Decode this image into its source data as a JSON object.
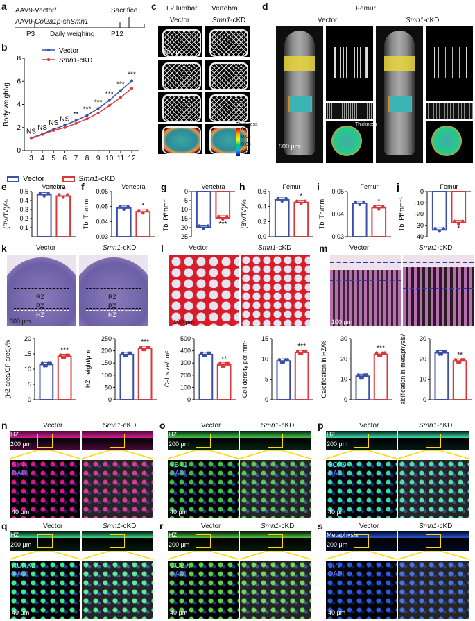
{
  "colors": {
    "vector": "#3b4fa8",
    "kd": "#d9383a"
  },
  "panel_a": {
    "label": "a",
    "line1": "AAV9-Vector/",
    "line2_prefix": "AAV9-",
    "line2_italic": "Col2a1p",
    "line2_mid": "-sh",
    "line2_italic2": "Smn1",
    "sacrifice": "Sacrifice",
    "p3": "P3",
    "daily": "Daily weighing",
    "p12": "P12"
  },
  "panel_c": {
    "label": "c",
    "col1": "L2 lumbar",
    "col2": "Vertebra",
    "vector": "Vector",
    "kd_italic": "Smn1",
    "kd_suffix": "-cKD",
    "scale": "500 μm",
    "thickness_title": "Thickness",
    "thickness_ticks": [
      "0.07",
      "0.05",
      "0.03",
      "0.01"
    ]
  },
  "panel_d": {
    "label": "d",
    "title": "Femur",
    "vector": "Vector",
    "kd_italic": "Smn1",
    "kd_suffix": "-cKD",
    "scale": "500 μm",
    "thickness_title": "Thickness",
    "thickness_ticks": [
      "0.04",
      "0.03",
      "0.02",
      "0.01"
    ]
  },
  "legend": {
    "vector": "Vector",
    "kd_italic": "Smn1",
    "kd_suffix": "-cKD"
  },
  "panel_k": {
    "label": "k",
    "vector": "Vector",
    "kd_italic": "Smn1",
    "kd_suffix": "-cKD",
    "rz": "RZ",
    "pz": "PZ",
    "hz": "HZ",
    "scale": "500 μm"
  },
  "panel_l": {
    "label": "l",
    "vector": "Vector",
    "kd_italic": "Smn1",
    "kd_suffix": "-cKD",
    "scale": "100 μm"
  },
  "panel_m": {
    "label": "m",
    "vector": "Vector",
    "kd_italic": "Smn1",
    "kd_suffix": "-cKD",
    "scale": "100 μm"
  },
  "if_panels": [
    {
      "label": "n",
      "marker": "SMN",
      "dapi": "DAPI",
      "zone": "HZ",
      "scale_top": "200 μm",
      "scale_bot": "40 μm",
      "vector": "Vector",
      "kd_italic": "Smn1",
      "kd_suffix": "-cKD"
    },
    {
      "label": "o",
      "marker": "YBX1",
      "dapi": "DAPI",
      "zone": "HZ",
      "scale_top": "200 μm",
      "scale_bot": "40 μm",
      "vector": "Vector",
      "kd_italic": "Smn1",
      "kd_suffix": "-cKD"
    },
    {
      "label": "p",
      "marker": "SOX9",
      "dapi": "DAPI",
      "zone": "HZ",
      "scale_top": "200 μm",
      "scale_bot": "40 μm",
      "vector": "Vector",
      "kd_italic": "Smn1",
      "kd_suffix": "-cKD"
    },
    {
      "label": "q",
      "marker": "RUNX2",
      "dapi": "DAPI",
      "zone": "HZ",
      "scale_top": "200 μm",
      "scale_bot": "40 μm",
      "vector": "Vector",
      "kd_italic": "Smn1",
      "kd_suffix": "-cKD"
    },
    {
      "label": "r",
      "marker": "COL X",
      "dapi": "DAPI",
      "zone": "HZ",
      "scale_top": "200 μm",
      "scale_bot": "40 μm",
      "vector": "Vector",
      "kd_italic": "Smn1",
      "kd_suffix": "-cKD"
    },
    {
      "label": "s",
      "marker": "SP7",
      "dapi": "DAPI",
      "zone": "Metaphysis",
      "scale_top": "200 μm",
      "scale_bot": "40 μm",
      "vector": "Vector",
      "kd_italic": "Smn1",
      "kd_suffix": "-cKD"
    }
  ],
  "chart_data": [
    {
      "id": "b",
      "type": "line",
      "label": "b",
      "ylabel": "Body weight/g",
      "x": [
        3,
        4,
        5,
        6,
        7,
        8,
        9,
        10,
        11,
        12
      ],
      "ylim": [
        0,
        8
      ],
      "yticks": [
        0,
        2,
        4,
        6,
        8
      ],
      "legend_vector": "Vector",
      "legend_kd_italic": "Smn1",
      "legend_kd_suffix": "-cKD",
      "series": [
        {
          "name": "Vector",
          "values": [
            1.1,
            1.45,
            1.85,
            2.2,
            2.6,
            3.05,
            3.65,
            4.35,
            5.2,
            6.05
          ]
        },
        {
          "name": "Smn1-cKD",
          "values": [
            1.05,
            1.4,
            1.75,
            2.0,
            2.35,
            2.75,
            3.25,
            3.9,
            4.6,
            5.4
          ]
        }
      ],
      "annotations": [
        "NS",
        "NS",
        "NS",
        "NS",
        "**",
        "***",
        "***",
        "***",
        "***",
        "***"
      ]
    },
    {
      "id": "e",
      "type": "bar",
      "label": "e",
      "title": "Vertebra",
      "ylabel": "(BV/TV)/%",
      "ylim": [
        0,
        0.5
      ],
      "yticks": [
        "0.1",
        "0.2",
        "0.3",
        "0.4",
        "0.5"
      ],
      "values": [
        0.465,
        0.45
      ],
      "sig": "*"
    },
    {
      "id": "f",
      "type": "bar",
      "label": "f",
      "title": "Vertebra",
      "ylabel": "Tb. Th/mm",
      "ylim": [
        0.03,
        0.06
      ],
      "yticks": [
        "0.03",
        "0.04",
        "0.05",
        "0.06"
      ],
      "values": [
        0.049,
        0.0465
      ],
      "sig": "*"
    },
    {
      "id": "g",
      "type": "bar",
      "label": "g",
      "title": "Vertebra",
      "ylabel": "Tb. Pf/mm⁻¹",
      "ylim": [
        -25,
        0
      ],
      "yticks": [
        "0",
        "-5",
        "-10",
        "-15",
        "-20",
        "-25"
      ],
      "values": [
        -19.8,
        -14.6
      ],
      "sig": "***"
    },
    {
      "id": "h",
      "type": "bar",
      "label": "h",
      "title": "Femur",
      "ylabel": "(BV/TV)/%",
      "ylim": [
        0,
        0.6
      ],
      "yticks": [
        "0.0",
        "0.2",
        "0.4",
        "0.6"
      ],
      "values": [
        0.49,
        0.455
      ],
      "sig": "*"
    },
    {
      "id": "i",
      "type": "bar",
      "label": "i",
      "title": "Femur",
      "ylabel": "Tb. Th/mm",
      "ylim": [
        0.03,
        0.05
      ],
      "yticks": [
        "0.03",
        "0.04",
        "0.05"
      ],
      "values": [
        0.0448,
        0.0428
      ],
      "sig": "*"
    },
    {
      "id": "j",
      "type": "bar",
      "label": "j",
      "title": "Femur",
      "ylabel": "Tb. Pf/mm⁻¹",
      "ylim": [
        -40,
        0
      ],
      "yticks": [
        "0",
        "-10",
        "-20",
        "-30",
        "-40"
      ],
      "values": [
        -34,
        -27.5
      ],
      "sig": "*"
    },
    {
      "id": "k1",
      "type": "bar",
      "ylabel": "(HZ area/GP area)/%",
      "ylim": [
        0,
        20
      ],
      "yticks": [
        "0",
        "5",
        "10",
        "15",
        "20"
      ],
      "values": [
        11.5,
        14.2
      ],
      "sig": "***"
    },
    {
      "id": "k2",
      "type": "bar",
      "ylabel": "HZ height/μm",
      "ylim": [
        0,
        250
      ],
      "yticks": [
        "0",
        "50",
        "100",
        "150",
        "200",
        "250"
      ],
      "values": [
        185,
        210
      ],
      "sig": "***"
    },
    {
      "id": "l1",
      "type": "bar",
      "ylabel": "Cell size/μm²",
      "ylim": [
        0,
        500
      ],
      "yticks": [
        "0",
        "100",
        "200",
        "300",
        "400",
        "500"
      ],
      "values": [
        370,
        285
      ],
      "sig": "**"
    },
    {
      "id": "l2",
      "type": "bar",
      "ylabel": "Cell density per mm²",
      "ylim": [
        0,
        15
      ],
      "yticks": [
        "0",
        "5",
        "10",
        "15"
      ],
      "values": [
        9.5,
        11.6
      ],
      "sig": "***"
    },
    {
      "id": "m1",
      "type": "bar",
      "ylabel": "Calcification in HZ/%",
      "ylim": [
        0,
        30
      ],
      "yticks": [
        "0",
        "10",
        "20",
        "30"
      ],
      "values": [
        11.5,
        22.3
      ],
      "sig": "***"
    },
    {
      "id": "m2",
      "type": "bar",
      "ylabel": "Calcification in metaphysis/%",
      "ylim": [
        0,
        30
      ],
      "yticks": [
        "0",
        "10",
        "20",
        "30"
      ],
      "values": [
        23,
        19
      ],
      "sig": "**"
    }
  ]
}
